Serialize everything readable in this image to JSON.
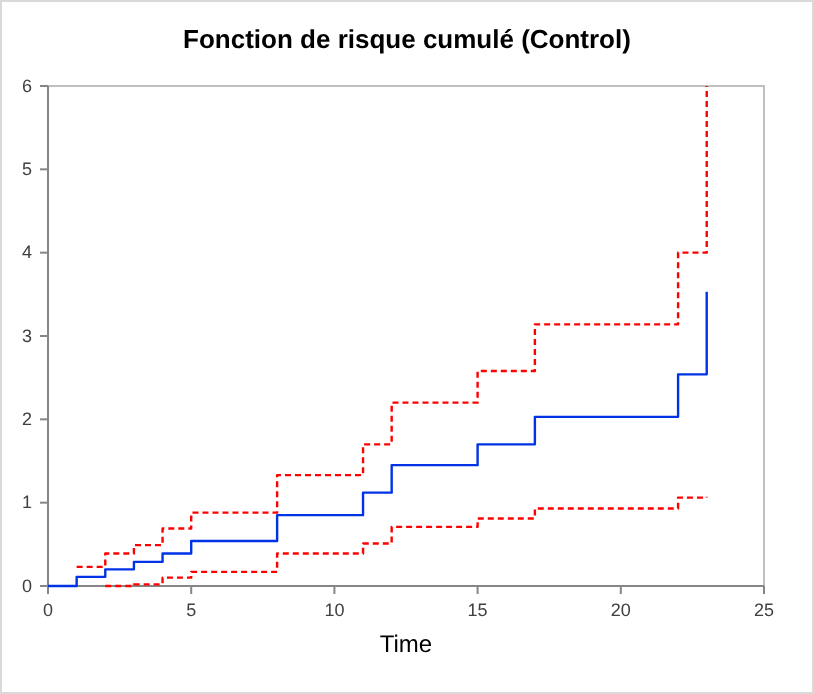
{
  "chart_data": {
    "type": "step",
    "title": "Fonction de risque cumulé (Control)",
    "xlabel": "Time",
    "xlim": [
      0,
      25
    ],
    "xticks": [
      0,
      5,
      10,
      15,
      20,
      25
    ],
    "ylim": [
      0,
      6
    ],
    "yticks": [
      0,
      1,
      2,
      3,
      4,
      5,
      6
    ],
    "grid": false,
    "series": [
      {
        "color": "#0033e6",
        "line_style": "solid",
        "x": [
          0,
          1,
          2,
          3,
          4,
          5,
          8,
          11,
          12,
          15,
          17,
          22,
          23
        ],
        "values": [
          0,
          0.11,
          0.2,
          0.29,
          0.39,
          0.54,
          0.85,
          1.12,
          1.45,
          1.7,
          2.03,
          2.54,
          3.53
        ]
      },
      {
        "color": "#ff0000",
        "line_style": "dashed",
        "x": [
          1,
          2,
          3,
          4,
          5,
          8,
          11,
          12,
          15,
          17,
          22,
          23
        ],
        "values": [
          0.23,
          0.39,
          0.49,
          0.69,
          0.88,
          1.33,
          1.7,
          2.2,
          2.58,
          3.14,
          4.0,
          6.0
        ]
      },
      {
        "color": "#ff0000",
        "line_style": "dashed",
        "x": [
          2,
          3,
          4,
          5,
          8,
          11,
          12,
          15,
          17,
          22,
          23
        ],
        "values": [
          0,
          0.02,
          0.1,
          0.17,
          0.39,
          0.51,
          0.71,
          0.81,
          0.93,
          1.06,
          1.07
        ]
      }
    ]
  }
}
